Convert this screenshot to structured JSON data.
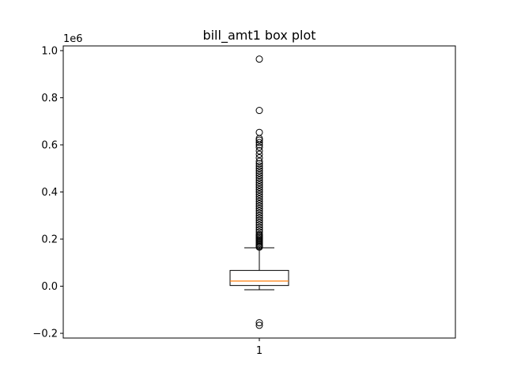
{
  "chart_data": {
    "type": "box",
    "title": "bill_amt1 box plot",
    "xlabel": "",
    "ylabel": "",
    "y_offset_label": "1e6",
    "ylim": [
      -0.22,
      1.02
    ],
    "y_ticks": [
      -0.2,
      0.0,
      0.2,
      0.4,
      0.6,
      0.8,
      1.0
    ],
    "y_tick_labels": [
      "−0.2",
      "0.0",
      "0.2",
      "0.4",
      "0.6",
      "0.8",
      "1.0"
    ],
    "x_tick_labels": [
      "1"
    ],
    "grid": false,
    "colors": {
      "box": "#000000",
      "median": "#ff7f0e",
      "flier": "#000000"
    },
    "box": {
      "whisker_low": -0.015,
      "q1": 0.003,
      "median": 0.022,
      "q3": 0.067,
      "whisker_high": 0.163
    },
    "fliers": [
      -0.166,
      -0.155,
      0.166,
      0.17,
      0.175,
      0.18,
      0.185,
      0.19,
      0.195,
      0.2,
      0.205,
      0.21,
      0.215,
      0.22,
      0.23,
      0.24,
      0.25,
      0.26,
      0.27,
      0.28,
      0.29,
      0.3,
      0.31,
      0.32,
      0.33,
      0.34,
      0.35,
      0.36,
      0.37,
      0.38,
      0.39,
      0.4,
      0.41,
      0.42,
      0.43,
      0.44,
      0.45,
      0.46,
      0.47,
      0.48,
      0.49,
      0.5,
      0.51,
      0.52,
      0.53,
      0.545,
      0.56,
      0.575,
      0.59,
      0.6,
      0.61,
      0.62,
      0.627,
      0.653,
      0.746,
      0.964
    ]
  }
}
